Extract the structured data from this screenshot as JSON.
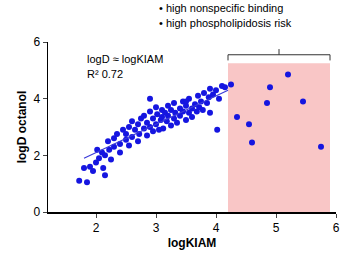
{
  "chart_data": {
    "type": "scatter",
    "x_label": "logKIAM",
    "y_label": "logD octanol",
    "annotations": [
      "logD ≈ logKIAM",
      "R² 0.72"
    ],
    "bullets": [
      "• high nonspecific binding",
      "• high phospholipidosis risk"
    ],
    "xlim": [
      1.2,
      6
    ],
    "xticks": [
      2,
      3,
      4,
      5,
      6
    ],
    "ylim": [
      0,
      6
    ],
    "yticks": [
      0,
      2,
      4,
      6
    ],
    "grid": false,
    "highlight": {
      "xlim": [
        4.2,
        5.9
      ],
      "ylim": [
        0,
        5.25
      ],
      "color": "#f9c6c6"
    },
    "series": [
      {
        "type": "scatter",
        "color": "#1515e0",
        "marker": "circle",
        "x": [
          1.72,
          1.8,
          1.85,
          1.9,
          1.95,
          2.0,
          2.02,
          2.05,
          2.1,
          2.12,
          2.15,
          2.2,
          2.22,
          2.25,
          2.3,
          2.3,
          2.35,
          2.4,
          2.4,
          2.45,
          2.5,
          2.5,
          2.55,
          2.55,
          2.6,
          2.6,
          2.65,
          2.7,
          2.7,
          2.72,
          2.75,
          2.8,
          2.8,
          2.85,
          2.85,
          2.9,
          2.9,
          2.95,
          2.95,
          3.0,
          3.0,
          3.02,
          3.05,
          3.08,
          3.1,
          3.1,
          3.12,
          3.15,
          3.18,
          3.2,
          3.2,
          3.25,
          3.25,
          3.3,
          3.3,
          3.32,
          3.35,
          3.4,
          3.4,
          3.45,
          3.45,
          3.5,
          3.5,
          3.55,
          3.55,
          3.6,
          3.6,
          3.65,
          3.68,
          3.7,
          3.72,
          3.75,
          3.78,
          3.8,
          3.85,
          3.88,
          3.9,
          3.95,
          4.0,
          4.02,
          4.05,
          4.1,
          3.9,
          3.5,
          2.9,
          2.15,
          4.15,
          4.25,
          4.35,
          4.55,
          4.6,
          4.85,
          4.9,
          5.2,
          5.45,
          5.75
        ],
        "values": [
          1.1,
          1.55,
          1.05,
          1.6,
          1.45,
          1.75,
          2.2,
          1.9,
          2.1,
          1.55,
          2.0,
          2.5,
          2.2,
          1.85,
          2.6,
          2.3,
          2.75,
          2.4,
          2.1,
          2.9,
          2.55,
          2.75,
          2.35,
          3.0,
          2.65,
          3.2,
          2.9,
          2.5,
          3.1,
          2.75,
          3.3,
          2.95,
          3.4,
          2.7,
          3.15,
          3.55,
          3.0,
          2.85,
          3.3,
          3.1,
          3.7,
          3.45,
          2.9,
          3.25,
          3.6,
          3.35,
          2.95,
          3.5,
          3.2,
          3.75,
          3.4,
          3.05,
          3.6,
          3.3,
          3.85,
          3.5,
          3.15,
          3.65,
          3.4,
          3.9,
          3.55,
          3.25,
          3.75,
          3.5,
          4.0,
          3.65,
          3.35,
          3.8,
          3.55,
          4.1,
          3.7,
          3.9,
          3.6,
          4.2,
          3.85,
          4.05,
          3.5,
          4.15,
          4.3,
          2.9,
          4.0,
          4.45,
          4.35,
          3.9,
          4.0,
          1.3,
          4.4,
          4.5,
          3.35,
          3.1,
          2.45,
          3.85,
          4.4,
          4.85,
          3.9,
          2.3
        ]
      },
      {
        "type": "line",
        "color": "#3a3ad8",
        "line_style": "solid",
        "x": [
          1.8,
          4.2
        ],
        "values": [
          1.9,
          4.3
        ]
      }
    ]
  }
}
